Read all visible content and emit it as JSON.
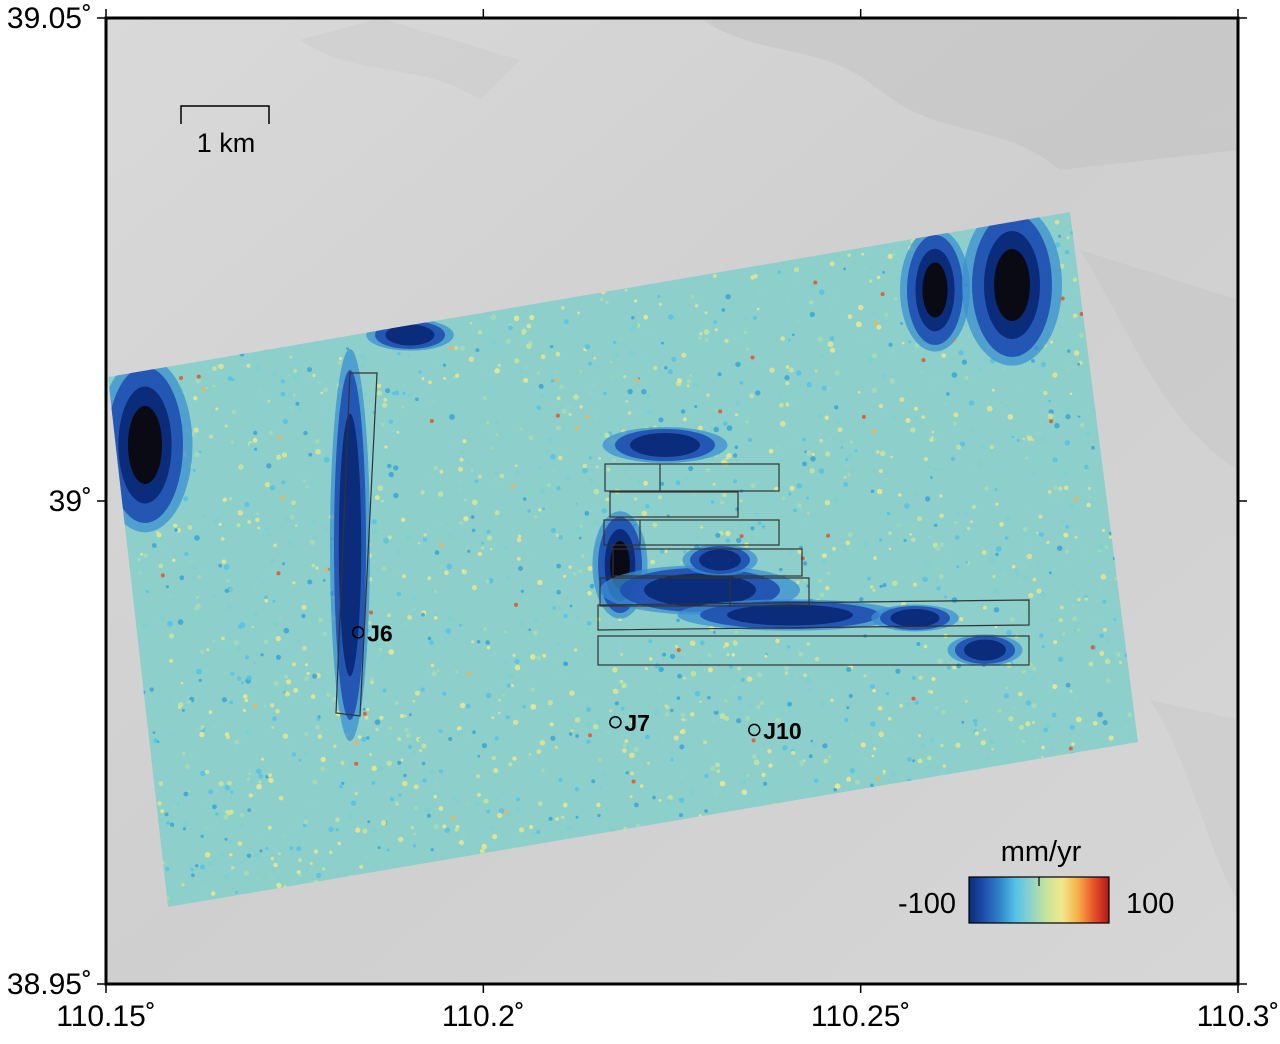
{
  "map": {
    "lon_range": [
      110.15,
      110.3
    ],
    "lat_range": [
      38.95,
      39.05
    ],
    "x_ticks": [
      {
        "value": 110.15,
        "label": "110.15˚"
      },
      {
        "value": 110.2,
        "label": "110.2˚"
      },
      {
        "value": 110.25,
        "label": "110.25˚"
      },
      {
        "value": 110.3,
        "label": "110.3˚"
      }
    ],
    "y_ticks": [
      {
        "value": 39.05,
        "label": "39.05˚"
      },
      {
        "value": 39.0,
        "label": "39˚"
      },
      {
        "value": 38.95,
        "label": "38.95˚"
      }
    ]
  },
  "scale_bar": {
    "label": "1 km"
  },
  "colorbar": {
    "unit": "mm/yr",
    "min_label": "-100",
    "max_label": "100",
    "range": [
      -100,
      100
    ],
    "colors": [
      "#0b2c7a",
      "#1f4fb0",
      "#2f86c8",
      "#55c2e8",
      "#8fd3c8",
      "#c8e49a",
      "#f2e88a",
      "#f5b04a",
      "#e8552a",
      "#b0161a"
    ]
  },
  "sites": [
    {
      "name": "J6",
      "lon": 110.1834,
      "lat": 38.9864
    },
    {
      "name": "J7",
      "lon": 110.2175,
      "lat": 38.9771
    },
    {
      "name": "J10",
      "lon": 110.2359,
      "lat": 38.9763
    }
  ],
  "colors": {
    "background": "#d4d4d4",
    "frame": "#000000",
    "box_outline": "#333333"
  }
}
